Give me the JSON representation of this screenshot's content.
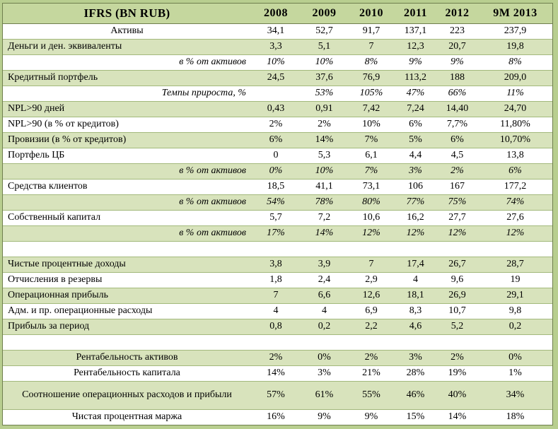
{
  "colors": {
    "sliver": "#b8ce8f",
    "header_bg": "#c5d79e",
    "row_green": "#d8e3bc",
    "row_white": "#ffffff",
    "row_border": "#a3b97c",
    "outer_border": "#6f7f4e",
    "text": "#000000"
  },
  "table": {
    "header": {
      "title": "IFRS (BN RUB)",
      "years": [
        "2008",
        "2009",
        "2010",
        "2011",
        "2012",
        "9M 2013"
      ]
    },
    "rows": [
      {
        "label": "Активы",
        "align": "center",
        "italic": false,
        "bg": "white",
        "values": [
          "34,1",
          "52,7",
          "91,7",
          "137,1",
          "223",
          "237,9"
        ]
      },
      {
        "label": "Деньги и ден. эквиваленты",
        "align": "left",
        "italic": false,
        "bg": "green",
        "values": [
          "3,3",
          "5,1",
          "7",
          "12,3",
          "20,7",
          "19,8"
        ]
      },
      {
        "label": "в % от активов",
        "align": "right",
        "italic": true,
        "bg": "white",
        "values": [
          "10%",
          "10%",
          "8%",
          "9%",
          "9%",
          "8%"
        ]
      },
      {
        "label": "Кредитный портфель",
        "align": "left",
        "italic": false,
        "bg": "green",
        "values": [
          "24,5",
          "37,6",
          "76,9",
          "113,2",
          "188",
          "209,0"
        ]
      },
      {
        "label": "Темпы прироста, %",
        "align": "right",
        "italic": true,
        "bg": "white",
        "values": [
          "",
          "53%",
          "105%",
          "47%",
          "66%",
          "11%"
        ]
      },
      {
        "label": "NPL>90 дней",
        "align": "left",
        "italic": false,
        "bg": "green",
        "values": [
          "0,43",
          "0,91",
          "7,42",
          "7,24",
          "14,40",
          "24,70"
        ]
      },
      {
        "label": "NPL>90 (в % от кредитов)",
        "align": "left",
        "italic": false,
        "bg": "white",
        "values": [
          "2%",
          "2%",
          "10%",
          "6%",
          "7,7%",
          "11,80%"
        ]
      },
      {
        "label": "Провизии (в % от кредитов)",
        "align": "left",
        "italic": false,
        "bg": "green",
        "values": [
          "6%",
          "14%",
          "7%",
          "5%",
          "6%",
          "10,70%"
        ]
      },
      {
        "label": "Портфель ЦБ",
        "align": "left",
        "italic": false,
        "bg": "white",
        "values": [
          "0",
          "5,3",
          "6,1",
          "4,4",
          "4,5",
          "13,8"
        ]
      },
      {
        "label": "в % от активов",
        "align": "right",
        "italic": true,
        "bg": "green",
        "values": [
          "0%",
          "10%",
          "7%",
          "3%",
          "2%",
          "6%"
        ]
      },
      {
        "label": "Средства клиентов",
        "align": "left",
        "italic": false,
        "bg": "white",
        "values": [
          "18,5",
          "41,1",
          "73,1",
          "106",
          "167",
          "177,2"
        ]
      },
      {
        "label": "в % от активов",
        "align": "right",
        "italic": true,
        "bg": "green",
        "values": [
          "54%",
          "78%",
          "80%",
          "77%",
          "75%",
          "74%"
        ]
      },
      {
        "label": "Собственный капитал",
        "align": "left",
        "italic": false,
        "bg": "white",
        "values": [
          "5,7",
          "7,2",
          "10,6",
          "16,2",
          "27,7",
          "27,6"
        ]
      },
      {
        "label": "в % от активов",
        "align": "right",
        "italic": true,
        "bg": "green",
        "values": [
          "17%",
          "14%",
          "12%",
          "12%",
          "12%",
          "12%"
        ]
      },
      {
        "label": "",
        "spacer": true,
        "bg": "white",
        "values": [
          "",
          "",
          "",
          "",
          "",
          ""
        ]
      },
      {
        "label": "Чистые процентные доходы",
        "align": "left",
        "italic": false,
        "bg": "green",
        "values": [
          "3,8",
          "3,9",
          "7",
          "17,4",
          "26,7",
          "28,7"
        ]
      },
      {
        "label": "Отчисления в резервы",
        "align": "left",
        "italic": false,
        "bg": "white",
        "values": [
          "1,8",
          "2,4",
          "2,9",
          "4",
          "9,6",
          "19"
        ]
      },
      {
        "label": "Операционная прибыль",
        "align": "left",
        "italic": false,
        "bg": "green",
        "values": [
          "7",
          "6,6",
          "12,6",
          "18,1",
          "26,9",
          "29,1"
        ]
      },
      {
        "label": "Адм. и пр. операционные расходы",
        "align": "left",
        "italic": false,
        "bg": "white",
        "values": [
          "4",
          "4",
          "6,9",
          "8,3",
          "10,7",
          "9,8"
        ]
      },
      {
        "label": "Прибыль за период",
        "align": "left",
        "italic": false,
        "bg": "green",
        "values": [
          "0,8",
          "0,2",
          "2,2",
          "4,6",
          "5,2",
          "0,2"
        ]
      },
      {
        "label": "",
        "spacer": true,
        "bg": "white",
        "values": [
          "",
          "",
          "",
          "",
          "",
          ""
        ]
      },
      {
        "label": "Рентабельность активов",
        "align": "center",
        "italic": false,
        "bg": "green",
        "values": [
          "2%",
          "0%",
          "2%",
          "3%",
          "2%",
          "0%"
        ]
      },
      {
        "label": "Рентабельность капитала",
        "align": "center",
        "italic": false,
        "bg": "white",
        "values": [
          "14%",
          "3%",
          "21%",
          "28%",
          "19%",
          "1%"
        ]
      },
      {
        "label": "Соотношение операционных расходов и прибыли",
        "align": "center",
        "italic": false,
        "bg": "green",
        "tall": true,
        "values": [
          "57%",
          "61%",
          "55%",
          "46%",
          "40%",
          "34%"
        ]
      },
      {
        "label": "Чистая процентная маржа",
        "align": "center",
        "italic": false,
        "bg": "white",
        "values": [
          "16%",
          "9%",
          "9%",
          "15%",
          "14%",
          "18%"
        ]
      }
    ]
  }
}
